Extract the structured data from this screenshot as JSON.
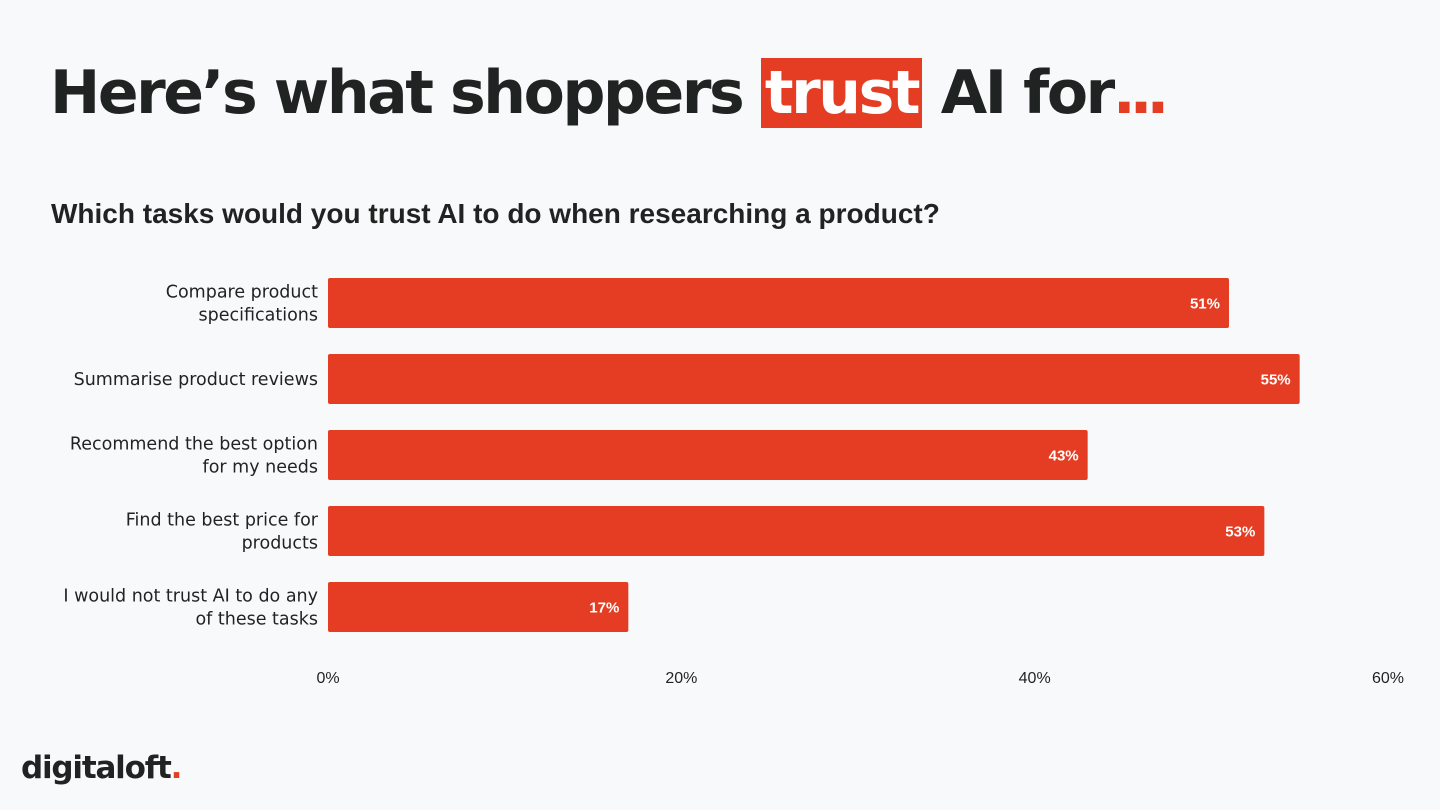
{
  "headline": {
    "before": "Here’s what shoppers ",
    "highlight": "trust",
    "after": " AI for",
    "ellipsis": "..."
  },
  "chart_data": {
    "type": "bar",
    "orientation": "horizontal",
    "title": "Which tasks would you trust AI to do when researching a product?",
    "categories": [
      [
        "Compare product",
        "specifications"
      ],
      [
        "Summarise product reviews"
      ],
      [
        "Recommend the best option",
        "for my needs"
      ],
      [
        "Find the best price for",
        "products"
      ],
      [
        "I would not trust AI to do any",
        "of these tasks"
      ]
    ],
    "values": [
      51,
      55,
      43,
      53,
      17
    ],
    "data_labels": [
      "51%",
      "55%",
      "43%",
      "53%",
      "17%"
    ],
    "xlim": [
      0,
      60
    ],
    "x_ticks": [
      0,
      20,
      40,
      60
    ],
    "x_tick_labels": [
      "0%",
      "20%",
      "40%",
      "60%"
    ],
    "grid": false,
    "colors": {
      "bar": "#e43d23",
      "data_label": "#ffffff",
      "text": "#1f2321"
    }
  },
  "logo": {
    "text": "digitaloft",
    "dot": "."
  },
  "colors": {
    "accent": "#e43d23",
    "background": "#f8f9fb",
    "text": "#1f2321"
  }
}
